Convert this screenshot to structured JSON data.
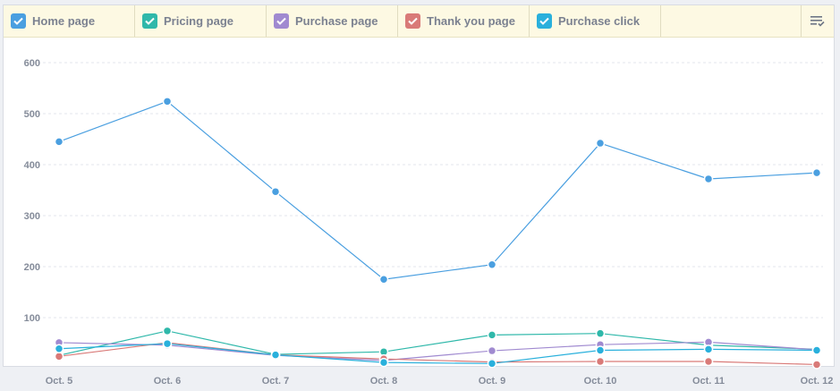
{
  "legend": {
    "items": [
      {
        "label": "Home page",
        "color": "#4a9fe0"
      },
      {
        "label": "Pricing page",
        "color": "#2fb8aa"
      },
      {
        "label": "Purchase page",
        "color": "#a08ad0"
      },
      {
        "label": "Thank you page",
        "color": "#d97a78"
      },
      {
        "label": "Purchase click",
        "color": "#29b0dc"
      }
    ],
    "menu_icon": "list-check-icon"
  },
  "chart_data": {
    "type": "line",
    "categories": [
      "Oct. 5",
      "Oct. 6",
      "Oct. 7",
      "Oct. 8",
      "Oct. 9",
      "Oct. 10",
      "Oct. 11",
      "Oct. 12"
    ],
    "ylim": [
      0,
      600
    ],
    "yticks": [
      "100",
      "200",
      "300",
      "400",
      "500",
      "600"
    ],
    "grid": true,
    "legend_position": "top",
    "series": [
      {
        "name": "Home page",
        "color": "#4a9fe0",
        "values": [
          445,
          524,
          347,
          175,
          204,
          442,
          372,
          384
        ]
      },
      {
        "name": "Pricing page",
        "color": "#2fb8aa",
        "values": [
          26,
          74,
          28,
          33,
          66,
          69,
          46,
          38
        ]
      },
      {
        "name": "Purchase page",
        "color": "#a08ad0",
        "values": [
          51,
          46,
          26,
          16,
          35,
          47,
          52,
          37
        ]
      },
      {
        "name": "Thank you page",
        "color": "#d97a78",
        "values": [
          24,
          51,
          27,
          19,
          13,
          14,
          14,
          8
        ]
      },
      {
        "name": "Purchase click",
        "color": "#29b0dc",
        "values": [
          39,
          49,
          27,
          12,
          10,
          36,
          38,
          36
        ]
      }
    ]
  }
}
